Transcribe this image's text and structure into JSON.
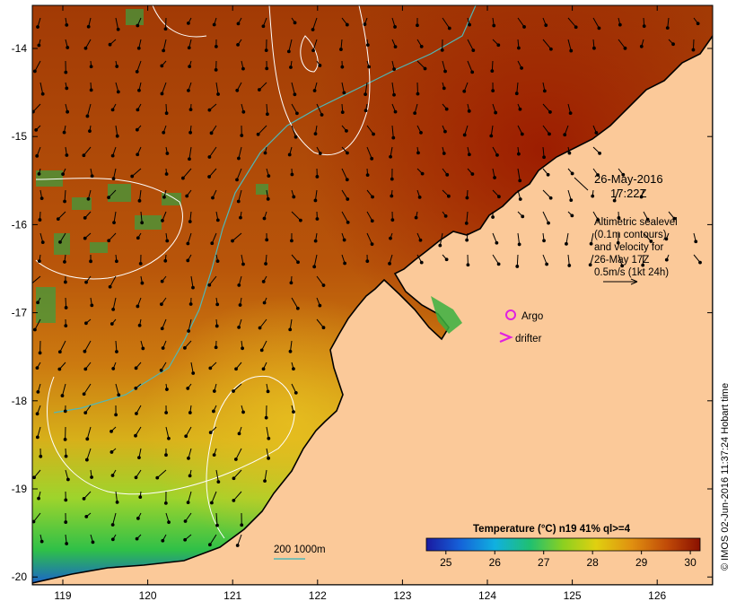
{
  "map": {
    "date_label": "26-May-2016",
    "time_label": "17:22Z",
    "altimetry_note": [
      "Altimetric sealevel",
      "(0.1m contours)",
      "and velocity for",
      "26-May 17Z",
      "0.5m/s (1kt 24h)"
    ],
    "legend": {
      "argo_label": "Argo",
      "drifter_label": "drifter",
      "depth_contours_label": "200  1000m"
    },
    "colorbar": {
      "title": "Temperature (°C) n19 41% ql>=4",
      "ticks": [
        "25",
        "26",
        "27",
        "28",
        "29",
        "30"
      ],
      "range": [
        24.6,
        30.2
      ]
    },
    "credit": "© IMOS 02-Jun-2016 11:37:24 Hobart time",
    "axes": {
      "lon_ticks": [
        "119",
        "120",
        "121",
        "122",
        "123",
        "124",
        "125",
        "126"
      ],
      "lat_ticks": [
        "-14",
        "-15",
        "-16",
        "-17",
        "-18",
        "-19",
        "-20"
      ]
    },
    "colors": {
      "land": "#fbc999",
      "coast": "#000000",
      "bathymetry": "#4fb8b8",
      "sealevel_contour": "#ffffff",
      "argo": "#e020e0",
      "drifter": "#e020e0"
    }
  }
}
